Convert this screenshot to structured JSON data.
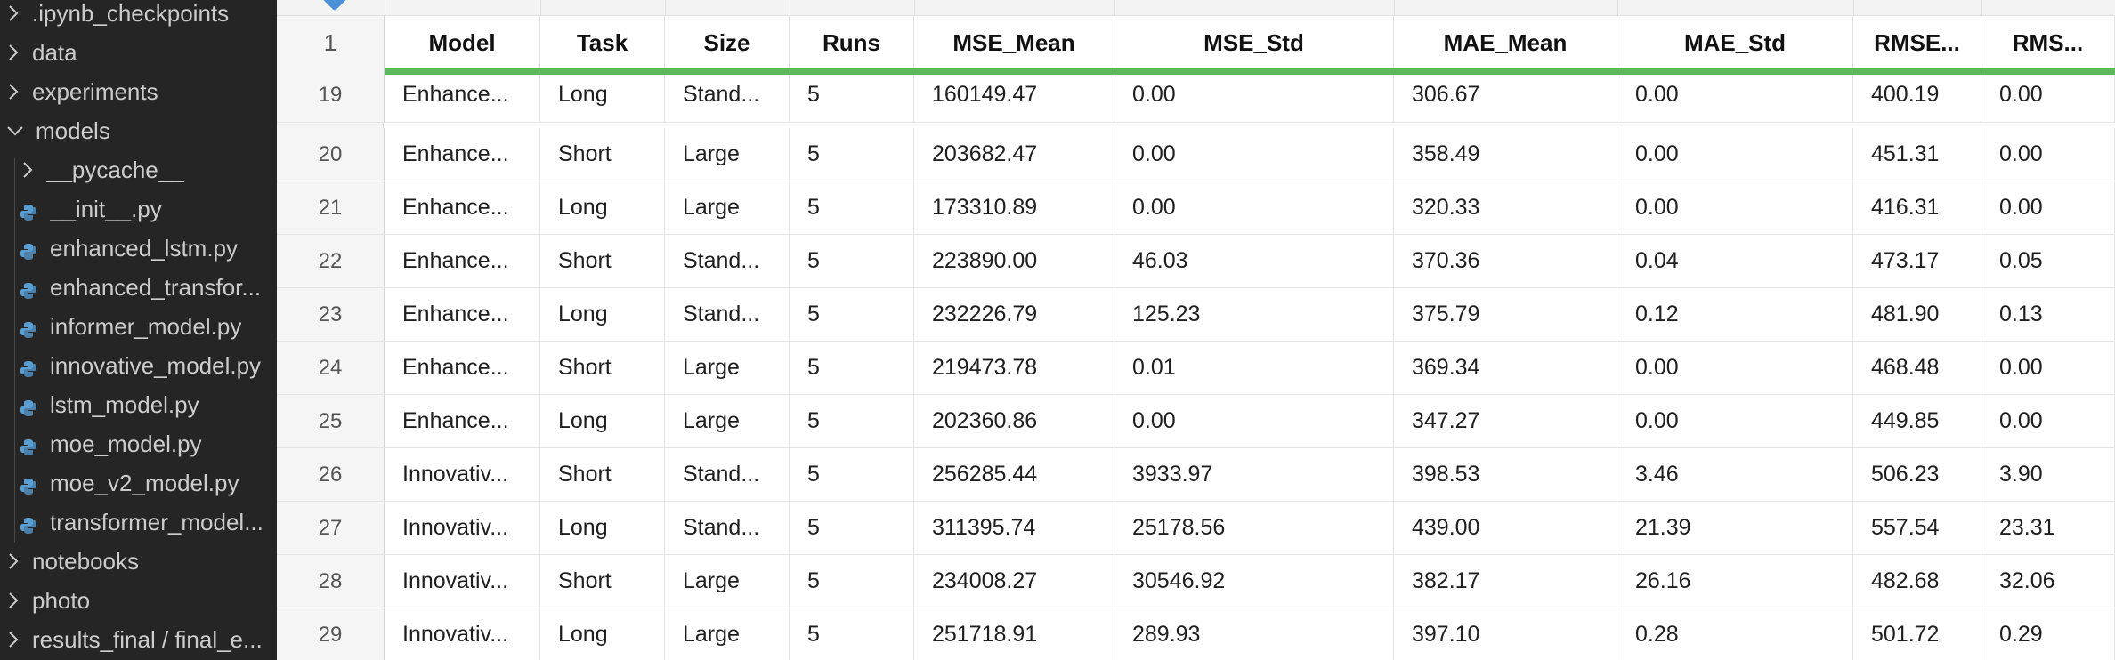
{
  "sidebar": {
    "items": [
      {
        "label": ".ipynb_checkpoints",
        "kind": "folder",
        "state": "collapsed",
        "depth": 0
      },
      {
        "label": "data",
        "kind": "folder",
        "state": "collapsed",
        "depth": 0
      },
      {
        "label": "experiments",
        "kind": "folder",
        "state": "collapsed",
        "depth": 0
      },
      {
        "label": "models",
        "kind": "folder",
        "state": "expanded",
        "depth": 0
      },
      {
        "label": "__pycache__",
        "kind": "folder",
        "state": "collapsed",
        "depth": 1
      },
      {
        "label": "__init__.py",
        "kind": "python-file",
        "depth": 1
      },
      {
        "label": "enhanced_lstm.py",
        "kind": "python-file",
        "depth": 1
      },
      {
        "label": "enhanced_transfor...",
        "kind": "python-file",
        "depth": 1
      },
      {
        "label": "informer_model.py",
        "kind": "python-file",
        "depth": 1
      },
      {
        "label": "innovative_model.py",
        "kind": "python-file",
        "depth": 1
      },
      {
        "label": "lstm_model.py",
        "kind": "python-file",
        "depth": 1
      },
      {
        "label": "moe_model.py",
        "kind": "python-file",
        "depth": 1
      },
      {
        "label": "moe_v2_model.py",
        "kind": "python-file",
        "depth": 1
      },
      {
        "label": "transformer_model...",
        "kind": "python-file",
        "depth": 1
      },
      {
        "label": "notebooks",
        "kind": "folder",
        "state": "collapsed",
        "depth": 0
      },
      {
        "label": "photo",
        "kind": "folder",
        "state": "collapsed",
        "depth": 0
      },
      {
        "label": "results_final / final_e...",
        "kind": "folder",
        "state": "collapsed",
        "depth": 0
      }
    ],
    "icons": {
      "folder_collapsed": "chevron-right-icon",
      "folder_expanded": "chevron-down-icon",
      "python_file": "python-icon"
    },
    "colors": {
      "background": "#252526",
      "text": "#cccccc",
      "python_icon": "#5a9fd4"
    }
  },
  "grid": {
    "header_row_number": "1",
    "columns": [
      "Model",
      "Task",
      "Size",
      "Runs",
      "MSE_Mean",
      "MSE_Std",
      "MAE_Mean",
      "MAE_Std",
      "RMSE...",
      "RMS..."
    ],
    "rows": [
      {
        "n": "19",
        "cells": [
          "Enhance...",
          "Long",
          "Stand...",
          "5",
          "160149.47",
          "0.00",
          "306.67",
          "0.00",
          "400.19",
          "0.00"
        ]
      },
      {
        "n": "20",
        "cells": [
          "Enhance...",
          "Short",
          "Large",
          "5",
          "203682.47",
          "0.00",
          "358.49",
          "0.00",
          "451.31",
          "0.00"
        ]
      },
      {
        "n": "21",
        "cells": [
          "Enhance...",
          "Long",
          "Large",
          "5",
          "173310.89",
          "0.00",
          "320.33",
          "0.00",
          "416.31",
          "0.00"
        ]
      },
      {
        "n": "22",
        "cells": [
          "Enhance...",
          "Short",
          "Stand...",
          "5",
          "223890.00",
          "46.03",
          "370.36",
          "0.04",
          "473.17",
          "0.05"
        ]
      },
      {
        "n": "23",
        "cells": [
          "Enhance...",
          "Long",
          "Stand...",
          "5",
          "232226.79",
          "125.23",
          "375.79",
          "0.12",
          "481.90",
          "0.13"
        ]
      },
      {
        "n": "24",
        "cells": [
          "Enhance...",
          "Short",
          "Large",
          "5",
          "219473.78",
          "0.01",
          "369.34",
          "0.00",
          "468.48",
          "0.00"
        ]
      },
      {
        "n": "25",
        "cells": [
          "Enhance...",
          "Long",
          "Large",
          "5",
          "202360.86",
          "0.00",
          "347.27",
          "0.00",
          "449.85",
          "0.00"
        ]
      },
      {
        "n": "26",
        "cells": [
          "Innovativ...",
          "Short",
          "Stand...",
          "5",
          "256285.44",
          "3933.97",
          "398.53",
          "3.46",
          "506.23",
          "3.90"
        ]
      },
      {
        "n": "27",
        "cells": [
          "Innovativ...",
          "Long",
          "Stand...",
          "5",
          "311395.74",
          "25178.56",
          "439.00",
          "21.39",
          "557.54",
          "23.31"
        ]
      },
      {
        "n": "28",
        "cells": [
          "Innovativ...",
          "Short",
          "Large",
          "5",
          "234008.27",
          "30546.92",
          "382.17",
          "26.16",
          "482.68",
          "32.06"
        ]
      },
      {
        "n": "29",
        "cells": [
          "Innovativ...",
          "Long",
          "Large",
          "5",
          "251718.91",
          "289.93",
          "397.10",
          "0.28",
          "501.72",
          "0.29"
        ]
      }
    ],
    "colors": {
      "freeze_line": "#5cb85c",
      "row_number_bg": "#f5f5f5",
      "grid_line": "#e4e4e4"
    }
  }
}
